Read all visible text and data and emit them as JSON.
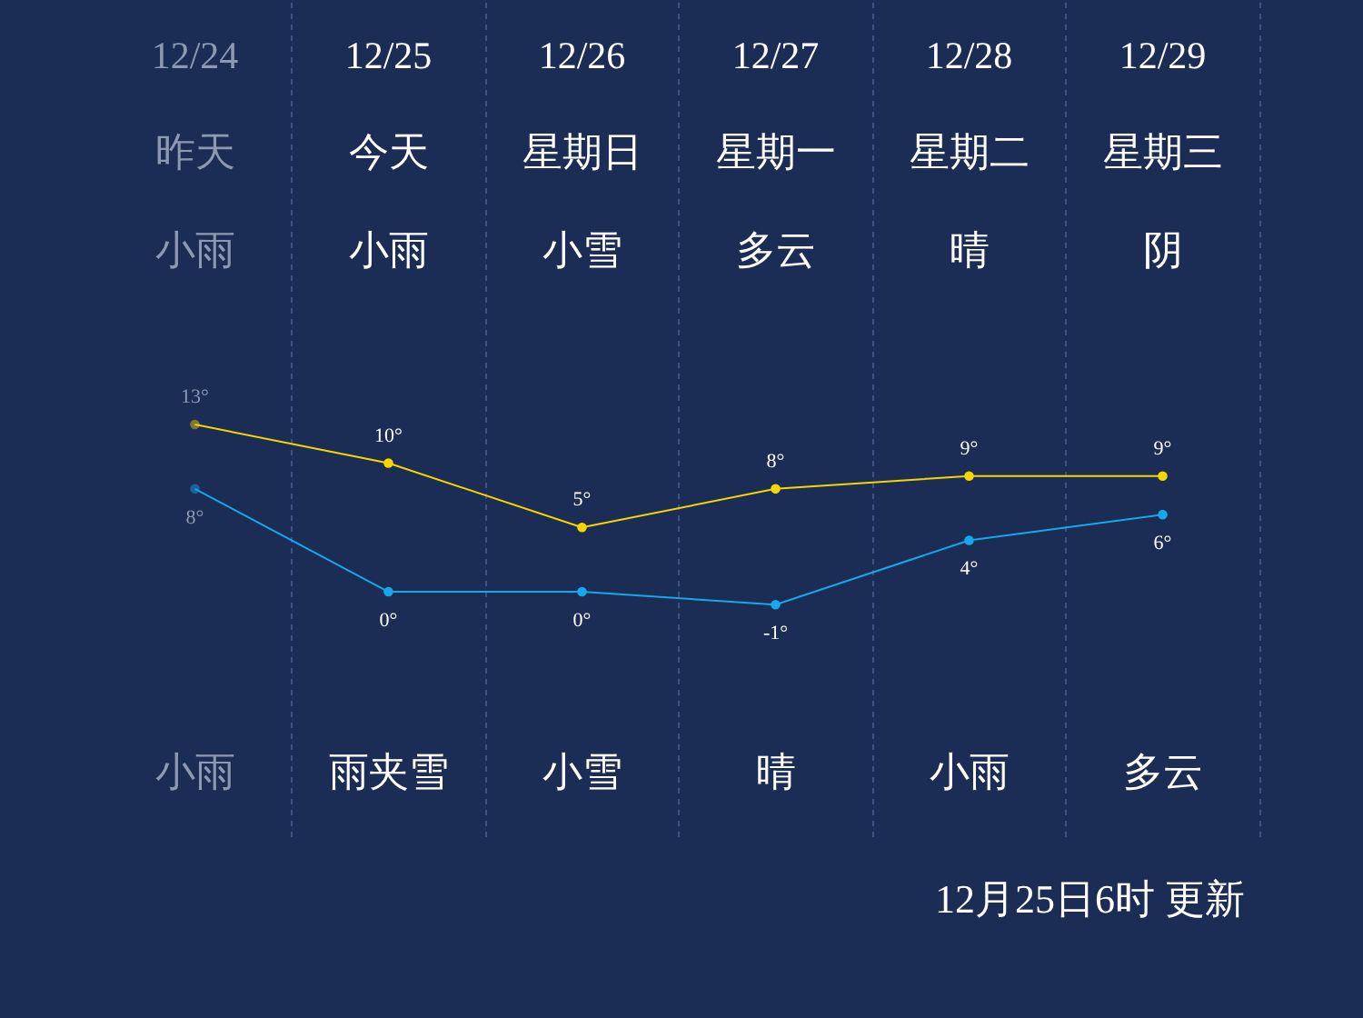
{
  "chart_data": {
    "type": "line",
    "categories": [
      "12/24",
      "12/25",
      "12/26",
      "12/27",
      "12/28",
      "12/29"
    ],
    "series": [
      {
        "color": "#f6d500",
        "values": [
          13,
          10,
          5,
          8,
          9,
          9
        ],
        "value_labels": [
          "13°",
          "10°",
          "5°",
          "8°",
          "9°",
          "9°"
        ]
      },
      {
        "color": "#16a8ec",
        "values": [
          8,
          0,
          0,
          -1,
          4,
          6
        ],
        "value_labels": [
          "8°",
          "0°",
          "0°",
          "-1°",
          "4°",
          "6°"
        ]
      }
    ],
    "ylim": [
      -19,
      46
    ],
    "tick_labels": "x",
    "grid": "x",
    "marker": "circle",
    "line_style": "solid",
    "annotations": [
      "昨天",
      "今天",
      "星期日",
      "星期一",
      "星期二",
      "星期三",
      "小雨",
      "小雨",
      "小雪",
      "多云",
      "晴",
      "阴",
      "小雨",
      "雨夹雪",
      "小雪",
      "晴",
      "小雨",
      "多云",
      "12月25日6时 更新"
    ]
  }
}
